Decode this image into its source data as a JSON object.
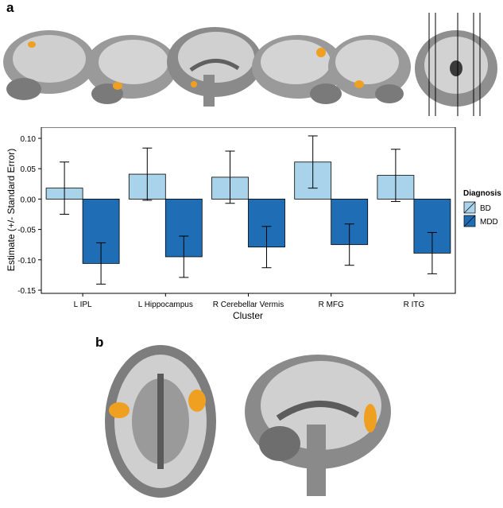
{
  "panels": {
    "a": "a",
    "b": "b"
  },
  "colors": {
    "bd": "#a9d3ea",
    "mdd": "#1f6eb5",
    "activation": "#f0a020",
    "brain_gray": "#8c8c8c"
  },
  "chart_data": {
    "type": "bar",
    "title": "",
    "xlabel": "Cluster",
    "ylabel": "Estimate (+/- Standard Error)",
    "categories": [
      "L IPL",
      "L Hippocampus",
      "R Cerebellar Vermis",
      "R MFG",
      "R ITG"
    ],
    "ylim": [
      -0.15,
      0.1
    ],
    "yticks": [
      "0.10",
      "0.05",
      "0.00",
      "-0.05",
      "-0.10",
      "-0.15"
    ],
    "ytick_values": [
      0.1,
      0.05,
      0.0,
      -0.05,
      -0.1,
      -0.15
    ],
    "legend": {
      "title": "Diagnosis",
      "position": "right"
    },
    "series": [
      {
        "name": "BD",
        "values": [
          0.018,
          0.041,
          0.036,
          0.061,
          0.039
        ],
        "se": [
          0.043,
          0.043,
          0.043,
          0.043,
          0.043
        ]
      },
      {
        "name": "MDD",
        "values": [
          -0.106,
          -0.095,
          -0.079,
          -0.075,
          -0.089
        ],
        "se": [
          0.034,
          0.034,
          0.034,
          0.034,
          0.034
        ]
      }
    ]
  }
}
